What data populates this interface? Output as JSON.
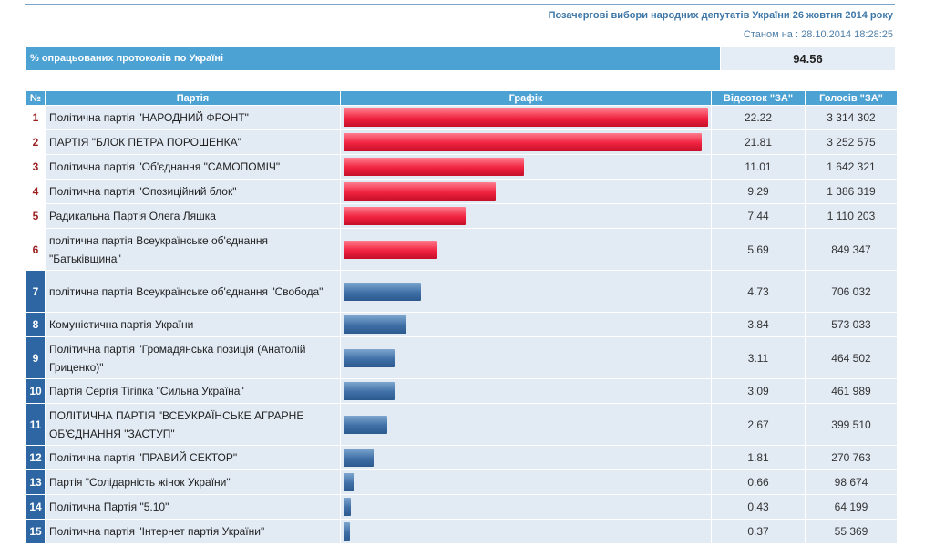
{
  "header": {
    "title": "Позачергові вибори народних депутатів України 26 жовтня 2014 року",
    "as_of": "Станом на : 28.10.2014 18:28:25"
  },
  "protocols": {
    "label": "% опрацьованих протоколів по Україні",
    "value": "94.56"
  },
  "table": {
    "headers": [
      "№",
      "Партія",
      "Графік",
      "Відсоток \"ЗА\"",
      "Голосів \"ЗА\""
    ]
  },
  "chart_data": {
    "type": "bar",
    "orientation": "horizontal",
    "max_value": 22.22,
    "colors": {
      "top": "#f0223f",
      "rest": "#3f6fa6"
    },
    "rows": [
      {
        "n": "1",
        "party": "Політична партія \"НАРОДНИЙ ФРОНТ\"",
        "pct": 22.22,
        "votes": "3 314 302",
        "color": "top"
      },
      {
        "n": "2",
        "party": "ПАРТІЯ \"БЛОК ПЕТРА ПОРОШЕНКА\"",
        "pct": 21.81,
        "votes": "3 252 575",
        "color": "top"
      },
      {
        "n": "3",
        "party": "Політична партія \"Об'єднання \"САМОПОМІЧ\"",
        "pct": 11.01,
        "votes": "1 642 321",
        "color": "top"
      },
      {
        "n": "4",
        "party": "Політична партія \"Опозиційний блок\"",
        "pct": 9.29,
        "votes": "1 386 319",
        "color": "top"
      },
      {
        "n": "5",
        "party": "Радикальна Партія Олега Ляшка",
        "pct": 7.44,
        "votes": "1 110 203",
        "color": "top"
      },
      {
        "n": "6",
        "party": "політична партія Всеукраїнське об'єднання \"Батьківщина\"",
        "pct": 5.69,
        "votes": "849 347",
        "color": "top"
      },
      {
        "n": "7",
        "party": "політична партія Всеукраїнське об'єднання \"Свобода\"",
        "pct": 4.73,
        "votes": "706 032",
        "color": "rest"
      },
      {
        "n": "8",
        "party": "Комуністична партія України",
        "pct": 3.84,
        "votes": "573 033",
        "color": "rest"
      },
      {
        "n": "9",
        "party": "Політична партія \"Громадянська позиція (Анатолій Гриценко)\"",
        "pct": 3.11,
        "votes": "464 502",
        "color": "rest"
      },
      {
        "n": "10",
        "party": "Партія Сергія Тігіпка \"Сильна Україна\"",
        "pct": 3.09,
        "votes": "461 989",
        "color": "rest"
      },
      {
        "n": "11",
        "party": "ПОЛІТИЧНА ПАРТІЯ \"ВСЕУКРАЇНСЬКЕ АГРАРНЕ ОБ'ЄДНАННЯ \"ЗАСТУП\"",
        "pct": 2.67,
        "votes": "399 510",
        "color": "rest"
      },
      {
        "n": "12",
        "party": "Політична партія \"ПРАВИЙ СЕКТОР\"",
        "pct": 1.81,
        "votes": "270 763",
        "color": "rest"
      },
      {
        "n": "13",
        "party": "Партія \"Солідарність жінок України\"",
        "pct": 0.66,
        "votes": "98 674",
        "color": "rest"
      },
      {
        "n": "14",
        "party": "Політична Партія \"5.10\"",
        "pct": 0.43,
        "votes": "64 199",
        "color": "rest"
      },
      {
        "n": "15",
        "party": "Політична партія \"Інтернет партія України\"",
        "pct": 0.37,
        "votes": "55 369",
        "color": "rest"
      }
    ]
  }
}
